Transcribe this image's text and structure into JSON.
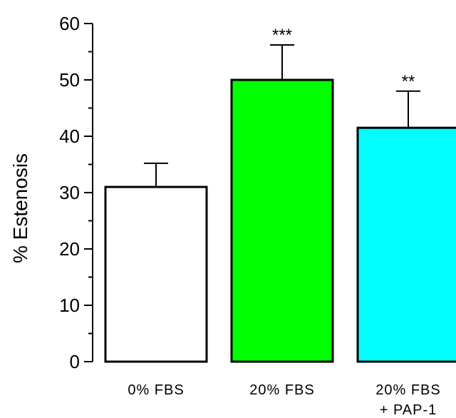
{
  "chart_data": {
    "type": "bar",
    "categories": [
      [
        "0% FBS"
      ],
      [
        "20% FBS"
      ],
      [
        "20% FBS",
        "+ PAP-1"
      ]
    ],
    "values": [
      31,
      50,
      41.5
    ],
    "errors": [
      4.2,
      6.2,
      6.5
    ],
    "significance": [
      "",
      "***",
      "**"
    ],
    "colors": [
      "#ffffff",
      "#00ff00",
      "#00ffff"
    ],
    "ylabel": "% Estenosis",
    "ylim": [
      0,
      60
    ],
    "yticks": [
      0,
      10,
      20,
      30,
      40,
      50,
      60
    ],
    "grid": false,
    "legend": "none"
  }
}
